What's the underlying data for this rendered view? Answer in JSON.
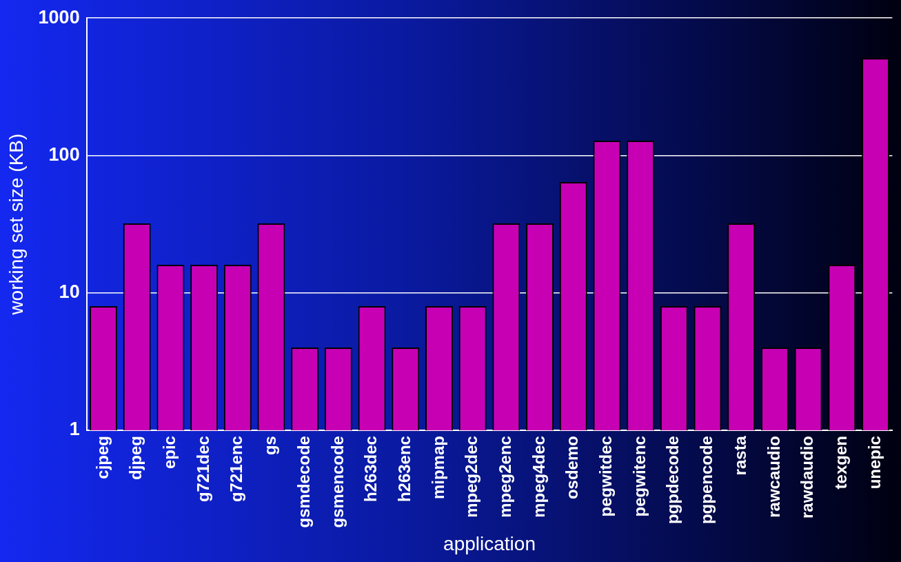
{
  "chart_data": {
    "type": "bar",
    "xlabel": "application",
    "ylabel": "working set size (KB)",
    "categories": [
      "cjpeg",
      "djpeg",
      "epic",
      "g721dec",
      "g721enc",
      "gs",
      "gsmdecode",
      "gsmencode",
      "h263dec",
      "h263enc",
      "mipmap",
      "mpeg2dec",
      "mpeg2enc",
      "mpeg4dec",
      "osdemo",
      "pegwitdec",
      "pegwitenc",
      "pgpdecode",
      "pgpencode",
      "rasta",
      "rawcaudio",
      "rawdaudio",
      "texgen",
      "unepic"
    ],
    "values": [
      8,
      32,
      16,
      16,
      16,
      32,
      4,
      4,
      8,
      4,
      8,
      8,
      32,
      32,
      64,
      128,
      128,
      8,
      8,
      32,
      4,
      4,
      16,
      512
    ],
    "color": "#c800b4",
    "ylim": [
      1,
      1000
    ],
    "yticks": [
      1,
      10,
      100,
      1000
    ],
    "log": true,
    "grid": "y"
  }
}
